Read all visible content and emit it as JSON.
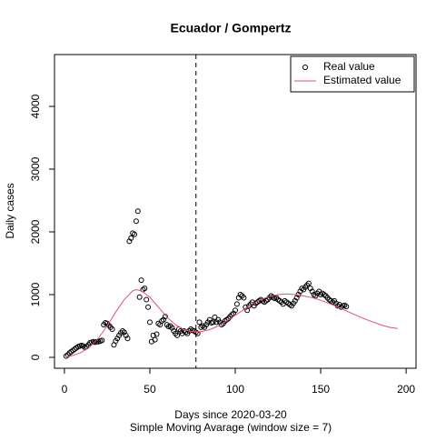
{
  "chart_data": {
    "type": "scatter",
    "title": "Ecuador / Gompertz",
    "x_label": "Days since 2020-03-20",
    "subtitle": "Simple Moving Avarage (window size = 7)",
    "y_label": "Daily cases",
    "xlim": [
      -5.8,
      205.8
    ],
    "ylim": [
      -174,
      4826
    ],
    "xticks": [
      0,
      50,
      100,
      150,
      200
    ],
    "yticks": [
      0,
      1000,
      2000,
      3000,
      4000
    ],
    "vline": 77,
    "legend": "top-right",
    "series": [
      {
        "name": "Real value",
        "color": "#000000",
        "kind": "points",
        "x": [
          1,
          2,
          3,
          4,
          5,
          6,
          7,
          8,
          9,
          10,
          11,
          12,
          13,
          14,
          15,
          16,
          17,
          18,
          19,
          20,
          21,
          22,
          23,
          24,
          25,
          26,
          27,
          28,
          29,
          30,
          31,
          32,
          33,
          34,
          35,
          36,
          37,
          38,
          39,
          40,
          41,
          42,
          43,
          44,
          45,
          46,
          47,
          48,
          49,
          50,
          51,
          52,
          53,
          54,
          55,
          56,
          57,
          58,
          59,
          60,
          61,
          62,
          63,
          64,
          65,
          66,
          67,
          68,
          69,
          70,
          71,
          72,
          73,
          74,
          75,
          76,
          77,
          78,
          79,
          80,
          81,
          82,
          83,
          84,
          85,
          86,
          87,
          88,
          89,
          90,
          91,
          92,
          93,
          94,
          95,
          96,
          97,
          98,
          99,
          100,
          101,
          102,
          103,
          104,
          105,
          106,
          107,
          108,
          109,
          110,
          111,
          112,
          113,
          114,
          115,
          116,
          117,
          118,
          119,
          120,
          121,
          122,
          123,
          124,
          125,
          126,
          127,
          128,
          129,
          130,
          131,
          132,
          133,
          134,
          135,
          136,
          137,
          138,
          139,
          140,
          141,
          142,
          143,
          144,
          145,
          146,
          147,
          148,
          149,
          150,
          151,
          152,
          153,
          154,
          155,
          156,
          157,
          158,
          159,
          160,
          161,
          162,
          163,
          164,
          165
        ],
        "values": [
          20,
          40,
          70,
          90,
          110,
          130,
          150,
          170,
          180,
          190,
          180,
          160,
          170,
          200,
          230,
          240,
          250,
          240,
          250,
          250,
          260,
          270,
          520,
          550,
          540,
          510,
          480,
          450,
          200,
          260,
          300,
          350,
          390,
          420,
          400,
          350,
          300,
          1850,
          1900,
          1980,
          1960,
          2170,
          2330,
          960,
          1230,
          1080,
          1100,
          920,
          800,
          560,
          250,
          350,
          280,
          370,
          540,
          520,
          580,
          600,
          650,
          520,
          490,
          500,
          470,
          420,
          380,
          350,
          450,
          420,
          380,
          420,
          400,
          380,
          420,
          450,
          430,
          420,
          400,
          380,
          560,
          480,
          500,
          480,
          520,
          560,
          600,
          550,
          560,
          640,
          560,
          600,
          560,
          520,
          540,
          580,
          600,
          620,
          650,
          680,
          700,
          750,
          850,
          950,
          1000,
          980,
          950,
          800,
          750,
          820,
          850,
          880,
          820,
          860,
          880,
          900,
          920,
          900,
          880,
          900,
          920,
          950,
          980,
          960,
          940,
          950,
          920,
          900,
          880,
          850,
          900,
          880,
          860,
          840,
          820,
          860,
          900,
          950,
          1000,
          1050,
          1100,
          1080,
          1120,
          1150,
          1180,
          1100,
          1050,
          1000,
          980,
          1020,
          1050,
          1000,
          1020,
          1000,
          980,
          950,
          920,
          900,
          880,
          900,
          860,
          820,
          840,
          800,
          820,
          830,
          810
        ]
      },
      {
        "name": "Estimated value",
        "color": "#DF536B",
        "kind": "line",
        "x": [
          1,
          5,
          10,
          15,
          20,
          25,
          30,
          35,
          40,
          42,
          45,
          50,
          55,
          60,
          65,
          70,
          75,
          80,
          85,
          90,
          95,
          100,
          105,
          110,
          115,
          120,
          125,
          130,
          135,
          140,
          145,
          150,
          155,
          160,
          165,
          170,
          175,
          180,
          185,
          190,
          195
        ],
        "values": [
          5,
          30,
          80,
          170,
          310,
          500,
          720,
          920,
          1060,
          1080,
          1060,
          960,
          800,
          640,
          520,
          440,
          410,
          410,
          440,
          500,
          580,
          670,
          760,
          850,
          920,
          970,
          1000,
          1010,
          1000,
          980,
          950,
          910,
          860,
          800,
          740,
          680,
          620,
          570,
          520,
          480,
          460
        ]
      }
    ]
  }
}
